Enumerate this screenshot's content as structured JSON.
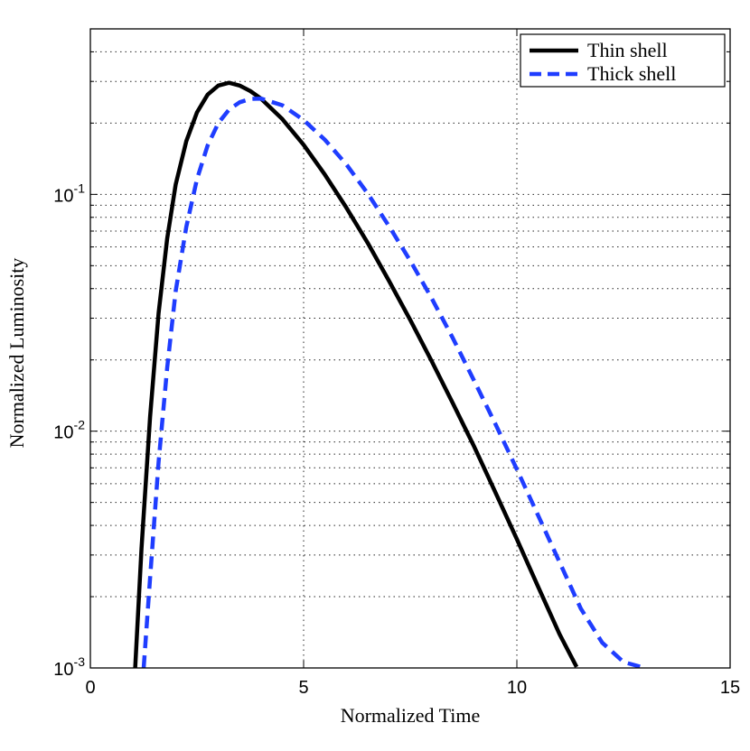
{
  "chart_data": {
    "type": "line",
    "title": "",
    "xlabel": "Normalized Time",
    "ylabel": "Normalized Luminosity",
    "xlim": [
      0,
      15
    ],
    "ylim": [
      0.001,
      0.5
    ],
    "yscale": "log",
    "grid": true,
    "legend_position": "top-right",
    "x_ticks": [
      {
        "value": 0,
        "label": "0"
      },
      {
        "value": 5,
        "label": "5"
      },
      {
        "value": 10,
        "label": "10"
      },
      {
        "value": 15,
        "label": "15"
      }
    ],
    "y_ticks": [
      {
        "value": 0.001,
        "base": "10",
        "exp": "-3"
      },
      {
        "value": 0.01,
        "base": "10",
        "exp": "-2"
      },
      {
        "value": 0.1,
        "base": "10",
        "exp": "-1"
      }
    ],
    "series": [
      {
        "name": "Thin shell",
        "color": "#000000",
        "style": "solid",
        "x": [
          1.05,
          1.2,
          1.4,
          1.6,
          1.8,
          2.0,
          2.25,
          2.5,
          2.75,
          3.0,
          3.25,
          3.5,
          3.75,
          4.0,
          4.5,
          5.0,
          5.5,
          6.0,
          6.5,
          7.0,
          7.5,
          8.0,
          8.5,
          9.0,
          9.5,
          10.0,
          10.5,
          11.0,
          11.4
        ],
        "y": [
          0.001,
          0.0032,
          0.0115,
          0.0315,
          0.065,
          0.11,
          0.168,
          0.222,
          0.264,
          0.288,
          0.296,
          0.288,
          0.273,
          0.254,
          0.208,
          0.162,
          0.121,
          0.088,
          0.0625,
          0.0432,
          0.0295,
          0.0198,
          0.0131,
          0.0086,
          0.0055,
          0.0035,
          0.0022,
          0.00139,
          0.00101
        ]
      },
      {
        "name": "Thick shell",
        "color": "#1f3dff",
        "style": "dashed",
        "x": [
          1.25,
          1.4,
          1.6,
          1.8,
          2.0,
          2.25,
          2.5,
          2.75,
          3.0,
          3.25,
          3.5,
          3.75,
          4.0,
          4.5,
          5.0,
          5.5,
          6.0,
          6.5,
          7.0,
          7.5,
          8.0,
          8.5,
          9.0,
          9.5,
          10.0,
          10.5,
          11.0,
          11.5,
          12.0,
          12.5,
          13.0
        ],
        "y": [
          0.001,
          0.0024,
          0.0074,
          0.0185,
          0.039,
          0.073,
          0.116,
          0.161,
          0.2,
          0.228,
          0.245,
          0.253,
          0.254,
          0.238,
          0.206,
          0.17,
          0.134,
          0.101,
          0.0735,
          0.0525,
          0.0365,
          0.0247,
          0.0163,
          0.0107,
          0.0069,
          0.0044,
          0.0028,
          0.00178,
          0.00128,
          0.00106,
          0.001
        ]
      }
    ]
  }
}
